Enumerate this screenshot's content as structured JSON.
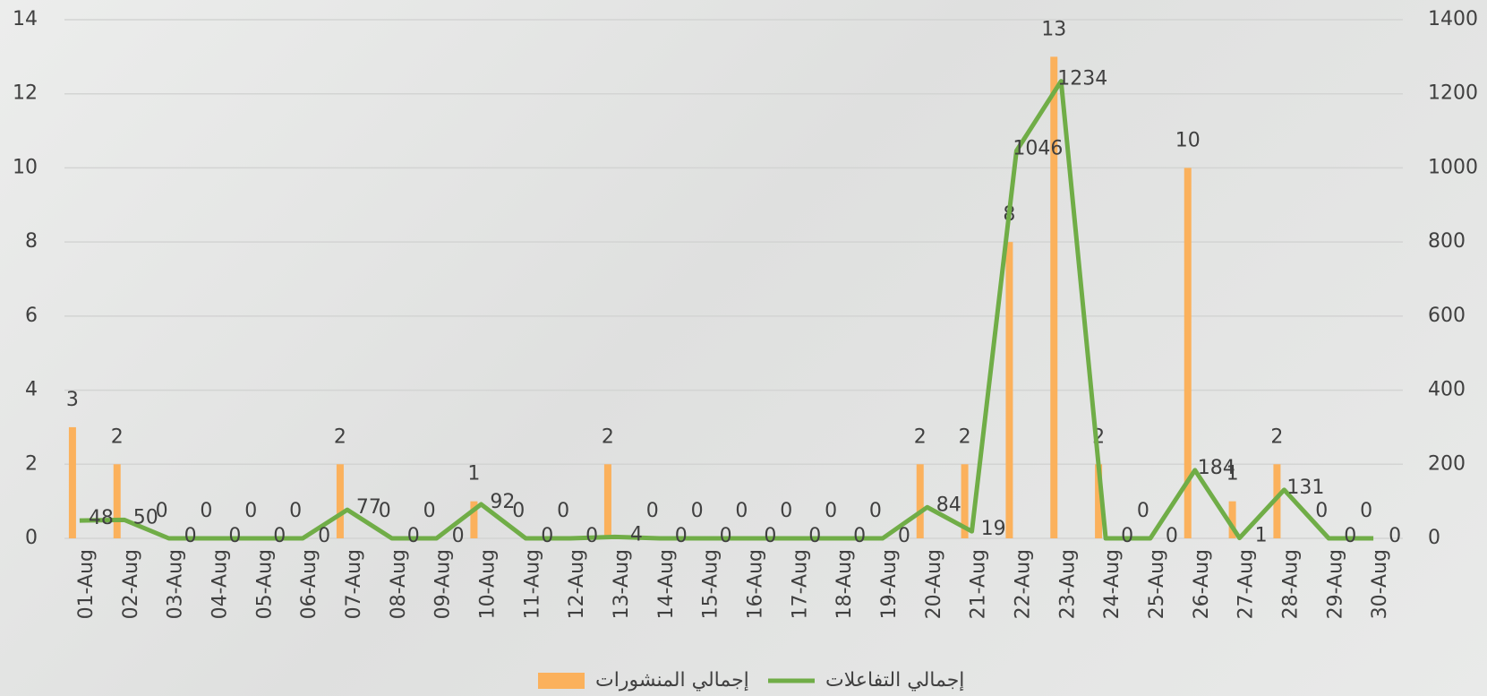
{
  "chart_data": {
    "type": "combo",
    "categories": [
      "01-Aug",
      "02-Aug",
      "03-Aug",
      "04-Aug",
      "05-Aug",
      "06-Aug",
      "07-Aug",
      "08-Aug",
      "09-Aug",
      "10-Aug",
      "11-Aug",
      "12-Aug",
      "13-Aug",
      "14-Aug",
      "15-Aug",
      "16-Aug",
      "17-Aug",
      "18-Aug",
      "19-Aug",
      "20-Aug",
      "21-Aug",
      "22-Aug",
      "23-Aug",
      "24-Aug",
      "25-Aug",
      "26-Aug",
      "27-Aug",
      "28-Aug",
      "29-Aug",
      "30-Aug"
    ],
    "series": [
      {
        "name": "إجمالي المنشورات",
        "type": "bar",
        "color": "#fbb15c",
        "axis": "y",
        "values": [
          3,
          2,
          0,
          0,
          0,
          0,
          2,
          0,
          0,
          1,
          0,
          0,
          2,
          0,
          0,
          0,
          0,
          0,
          0,
          2,
          2,
          8,
          13,
          2,
          0,
          10,
          1,
          2,
          0,
          0
        ]
      },
      {
        "name": "إجمالي التفاعلات",
        "type": "line",
        "color": "#70ad47",
        "axis": "y2",
        "values": [
          48,
          50,
          0,
          0,
          0,
          0,
          77,
          0,
          0,
          92,
          0,
          0,
          4,
          0,
          0,
          0,
          0,
          0,
          0,
          84,
          19,
          1046,
          1234,
          0,
          0,
          184,
          1,
          131,
          0,
          0
        ]
      }
    ],
    "ylim": [
      0,
      14
    ],
    "yticks": [
      0,
      2,
      4,
      6,
      8,
      10,
      12,
      14
    ],
    "y2lim": [
      0,
      1400
    ],
    "y2ticks": [
      0,
      200,
      400,
      600,
      800,
      1000,
      1200,
      1400
    ],
    "grid": true,
    "legend": "bottom"
  }
}
